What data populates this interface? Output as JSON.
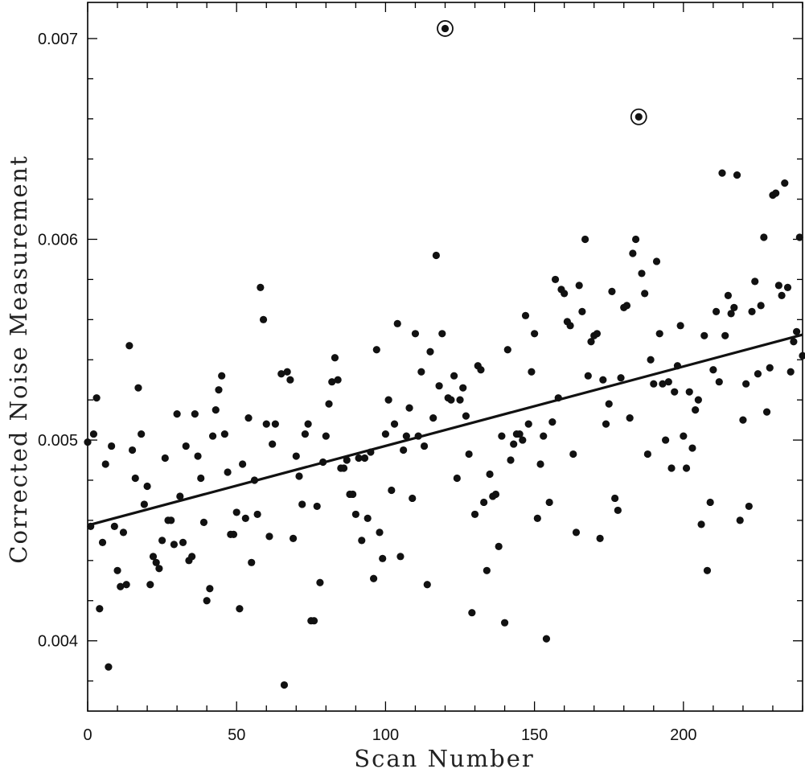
{
  "chart_data": {
    "type": "scatter",
    "title": "",
    "xlabel": "Scan Number",
    "ylabel": "Corrected Noise Measurement",
    "xlim": [
      0,
      240
    ],
    "ylim": [
      0.00365,
      0.00718
    ],
    "x_ticks": [
      0,
      50,
      100,
      150,
      200
    ],
    "x_tick_labels": [
      "0",
      "50",
      "100",
      "150",
      "200"
    ],
    "y_ticks": [
      0.004,
      0.005,
      0.006,
      0.007
    ],
    "y_tick_labels": [
      "0.004",
      "0.005",
      "0.006",
      "0.007"
    ],
    "grid": false,
    "legend": "none",
    "marker_color": "#111111",
    "fit_line": {
      "x": [
        0,
        240
      ],
      "y": [
        0.004575,
        0.005525
      ]
    },
    "circled_points": [
      {
        "x": 120,
        "y": 0.00705
      },
      {
        "x": 185,
        "y": 0.00661
      }
    ],
    "points": [
      [
        0,
        0.00499
      ],
      [
        1,
        0.00457
      ],
      [
        2,
        0.00503
      ],
      [
        3,
        0.00521
      ],
      [
        4,
        0.00416
      ],
      [
        5,
        0.00449
      ],
      [
        6,
        0.00488
      ],
      [
        7,
        0.00387
      ],
      [
        8,
        0.00497
      ],
      [
        9,
        0.00457
      ],
      [
        10,
        0.00435
      ],
      [
        11,
        0.00427
      ],
      [
        12,
        0.00454
      ],
      [
        13,
        0.00428
      ],
      [
        14,
        0.00547
      ],
      [
        15,
        0.00495
      ],
      [
        16,
        0.00481
      ],
      [
        17,
        0.00526
      ],
      [
        18,
        0.00503
      ],
      [
        19,
        0.00468
      ],
      [
        20,
        0.00477
      ],
      [
        21,
        0.00428
      ],
      [
        22,
        0.00442
      ],
      [
        23,
        0.00439
      ],
      [
        24,
        0.00436
      ],
      [
        25,
        0.0045
      ],
      [
        26,
        0.00491
      ],
      [
        27,
        0.0046
      ],
      [
        28,
        0.0046
      ],
      [
        29,
        0.00448
      ],
      [
        30,
        0.00513
      ],
      [
        31,
        0.00472
      ],
      [
        32,
        0.00449
      ],
      [
        33,
        0.00497
      ],
      [
        34,
        0.0044
      ],
      [
        35,
        0.00442
      ],
      [
        36,
        0.00513
      ],
      [
        37,
        0.00492
      ],
      [
        38,
        0.00481
      ],
      [
        39,
        0.00459
      ],
      [
        40,
        0.0042
      ],
      [
        41,
        0.00426
      ],
      [
        42,
        0.00502
      ],
      [
        43,
        0.00515
      ],
      [
        44,
        0.00525
      ],
      [
        45,
        0.00532
      ],
      [
        46,
        0.00503
      ],
      [
        47,
        0.00484
      ],
      [
        48,
        0.00453
      ],
      [
        49,
        0.00453
      ],
      [
        50,
        0.00464
      ],
      [
        51,
        0.00416
      ],
      [
        52,
        0.00488
      ],
      [
        53,
        0.00461
      ],
      [
        54,
        0.00511
      ],
      [
        55,
        0.00439
      ],
      [
        56,
        0.0048
      ],
      [
        57,
        0.00463
      ],
      [
        58,
        0.00576
      ],
      [
        59,
        0.0056
      ],
      [
        60,
        0.00508
      ],
      [
        61,
        0.00452
      ],
      [
        62,
        0.00498
      ],
      [
        63,
        0.00508
      ],
      [
        65,
        0.00533
      ],
      [
        66,
        0.00378
      ],
      [
        67,
        0.00534
      ],
      [
        68,
        0.0053
      ],
      [
        69,
        0.00451
      ],
      [
        70,
        0.00492
      ],
      [
        71,
        0.00482
      ],
      [
        72,
        0.00468
      ],
      [
        73,
        0.00503
      ],
      [
        74,
        0.00508
      ],
      [
        75,
        0.0041
      ],
      [
        76,
        0.0041
      ],
      [
        77,
        0.00467
      ],
      [
        78,
        0.00429
      ],
      [
        79,
        0.00489
      ],
      [
        80,
        0.00502
      ],
      [
        81,
        0.00518
      ],
      [
        82,
        0.00529
      ],
      [
        83,
        0.00541
      ],
      [
        84,
        0.0053
      ],
      [
        85,
        0.00486
      ],
      [
        86,
        0.00486
      ],
      [
        87,
        0.0049
      ],
      [
        88,
        0.00473
      ],
      [
        89,
        0.00473
      ],
      [
        90,
        0.00463
      ],
      [
        91,
        0.00491
      ],
      [
        92,
        0.0045
      ],
      [
        93,
        0.00491
      ],
      [
        94,
        0.00461
      ],
      [
        95,
        0.00494
      ],
      [
        96,
        0.00431
      ],
      [
        97,
        0.00545
      ],
      [
        98,
        0.00454
      ],
      [
        99,
        0.00441
      ],
      [
        100,
        0.00503
      ],
      [
        101,
        0.0052
      ],
      [
        102,
        0.00475
      ],
      [
        103,
        0.00508
      ],
      [
        104,
        0.00558
      ],
      [
        105,
        0.00442
      ],
      [
        106,
        0.00495
      ],
      [
        107,
        0.00502
      ],
      [
        108,
        0.00516
      ],
      [
        109,
        0.00471
      ],
      [
        110,
        0.00553
      ],
      [
        111,
        0.00502
      ],
      [
        112,
        0.00534
      ],
      [
        113,
        0.00497
      ],
      [
        114,
        0.00428
      ],
      [
        115,
        0.00544
      ],
      [
        116,
        0.00511
      ],
      [
        117,
        0.00592
      ],
      [
        118,
        0.00527
      ],
      [
        119,
        0.00553
      ],
      [
        120,
        0.00705
      ],
      [
        121,
        0.00521
      ],
      [
        122,
        0.0052
      ],
      [
        123,
        0.00532
      ],
      [
        124,
        0.00481
      ],
      [
        125,
        0.0052
      ],
      [
        126,
        0.00526
      ],
      [
        127,
        0.00512
      ],
      [
        128,
        0.00493
      ],
      [
        129,
        0.00414
      ],
      [
        130,
        0.00463
      ],
      [
        131,
        0.00537
      ],
      [
        132,
        0.00535
      ],
      [
        133,
        0.00469
      ],
      [
        134,
        0.00435
      ],
      [
        135,
        0.00483
      ],
      [
        136,
        0.00472
      ],
      [
        137,
        0.00473
      ],
      [
        138,
        0.00447
      ],
      [
        139,
        0.00502
      ],
      [
        140,
        0.00409
      ],
      [
        141,
        0.00545
      ],
      [
        142,
        0.0049
      ],
      [
        143,
        0.00498
      ],
      [
        144,
        0.00503
      ],
      [
        145,
        0.00503
      ],
      [
        146,
        0.005
      ],
      [
        147,
        0.00562
      ],
      [
        148,
        0.00508
      ],
      [
        149,
        0.00534
      ],
      [
        150,
        0.00553
      ],
      [
        151,
        0.00461
      ],
      [
        152,
        0.00488
      ],
      [
        153,
        0.00502
      ],
      [
        154,
        0.00401
      ],
      [
        155,
        0.00469
      ],
      [
        156,
        0.00509
      ],
      [
        157,
        0.0058
      ],
      [
        158,
        0.00521
      ],
      [
        159,
        0.00575
      ],
      [
        160,
        0.00573
      ],
      [
        161,
        0.00559
      ],
      [
        162,
        0.00557
      ],
      [
        163,
        0.00493
      ],
      [
        164,
        0.00454
      ],
      [
        165,
        0.00577
      ],
      [
        166,
        0.00564
      ],
      [
        167,
        0.006
      ],
      [
        168,
        0.00532
      ],
      [
        169,
        0.00549
      ],
      [
        170,
        0.00552
      ],
      [
        171,
        0.00553
      ],
      [
        172,
        0.00451
      ],
      [
        173,
        0.0053
      ],
      [
        174,
        0.00508
      ],
      [
        175,
        0.00518
      ],
      [
        176,
        0.00574
      ],
      [
        177,
        0.00471
      ],
      [
        178,
        0.00465
      ],
      [
        179,
        0.00531
      ],
      [
        180,
        0.00566
      ],
      [
        181,
        0.00567
      ],
      [
        182,
        0.00511
      ],
      [
        183,
        0.00593
      ],
      [
        184,
        0.006
      ],
      [
        185,
        0.00661
      ],
      [
        186,
        0.00583
      ],
      [
        187,
        0.00573
      ],
      [
        188,
        0.00493
      ],
      [
        189,
        0.0054
      ],
      [
        190,
        0.00528
      ],
      [
        191,
        0.00589
      ],
      [
        192,
        0.00553
      ],
      [
        193,
        0.00528
      ],
      [
        194,
        0.005
      ],
      [
        195,
        0.00529
      ],
      [
        196,
        0.00486
      ],
      [
        197,
        0.00524
      ],
      [
        198,
        0.00537
      ],
      [
        199,
        0.00557
      ],
      [
        200,
        0.00502
      ],
      [
        201,
        0.00486
      ],
      [
        202,
        0.00524
      ],
      [
        203,
        0.00496
      ],
      [
        204,
        0.00515
      ],
      [
        205,
        0.0052
      ],
      [
        206,
        0.00458
      ],
      [
        207,
        0.00552
      ],
      [
        208,
        0.00435
      ],
      [
        209,
        0.00469
      ],
      [
        210,
        0.00535
      ],
      [
        211,
        0.00564
      ],
      [
        212,
        0.00529
      ],
      [
        213,
        0.00633
      ],
      [
        214,
        0.00552
      ],
      [
        215,
        0.00572
      ],
      [
        216,
        0.00563
      ],
      [
        217,
        0.00566
      ],
      [
        218,
        0.00632
      ],
      [
        219,
        0.0046
      ],
      [
        220,
        0.0051
      ],
      [
        221,
        0.00528
      ],
      [
        222,
        0.00467
      ],
      [
        223,
        0.00564
      ],
      [
        224,
        0.00579
      ],
      [
        225,
        0.00533
      ],
      [
        226,
        0.00567
      ],
      [
        227,
        0.00601
      ],
      [
        228,
        0.00514
      ],
      [
        229,
        0.00536
      ],
      [
        230,
        0.00622
      ],
      [
        231,
        0.00623
      ],
      [
        232,
        0.00577
      ],
      [
        233,
        0.00572
      ],
      [
        234,
        0.00628
      ],
      [
        235,
        0.00576
      ],
      [
        236,
        0.00534
      ],
      [
        237,
        0.00549
      ],
      [
        238,
        0.00554
      ],
      [
        239,
        0.00601
      ],
      [
        240,
        0.00542
      ]
    ]
  }
}
